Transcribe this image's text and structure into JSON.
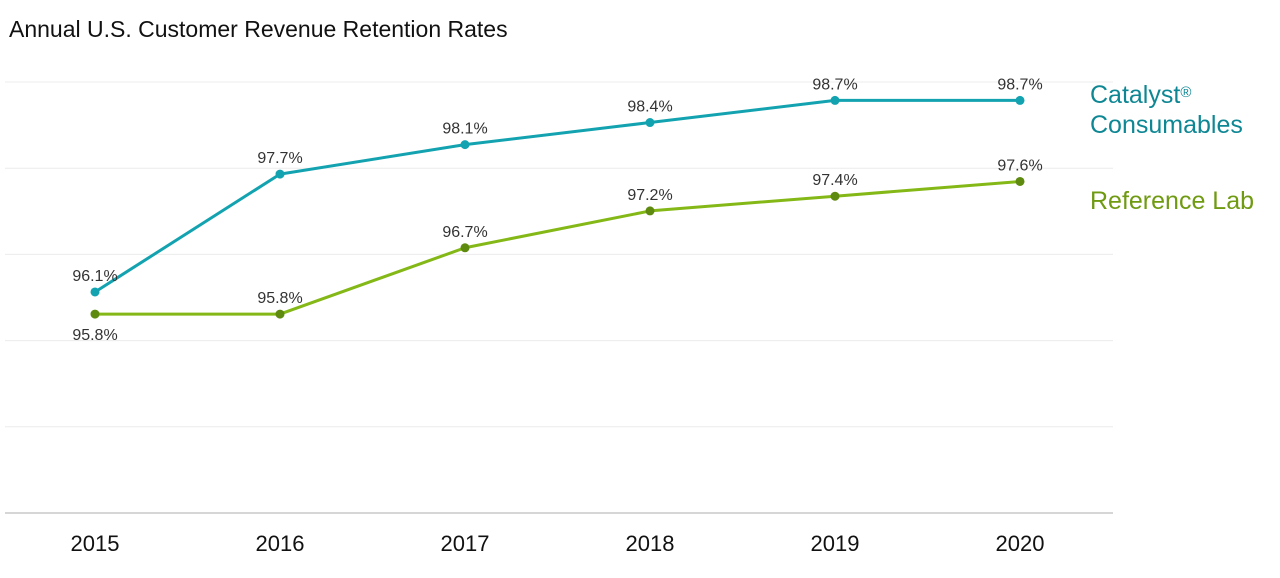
{
  "chart_data": {
    "type": "line",
    "title": "Annual U.S. Customer Revenue Retention Rates",
    "xlabel": "",
    "ylabel": "",
    "x": [
      "2015",
      "2016",
      "2017",
      "2018",
      "2019",
      "2020"
    ],
    "ylim": [
      93.1,
      98.95
    ],
    "grid": true,
    "legend_placement": "right",
    "series": [
      {
        "name": "Catalyst® Consumables",
        "legend_line1": "Catalyst",
        "legend_sup": "®",
        "legend_line2": "Consumables",
        "color": "#13a3b0",
        "marker_color": "#13a3b0",
        "values": [
          96.1,
          97.7,
          98.1,
          98.4,
          98.7,
          98.7
        ],
        "labels": [
          "96.1%",
          "97.7%",
          "98.1%",
          "98.4%",
          "98.7%",
          "98.7%"
        ]
      },
      {
        "name": "Reference Lab",
        "color": "#84b817",
        "marker_color": "#5e8a0f",
        "values": [
          95.8,
          95.8,
          96.7,
          97.2,
          97.4,
          97.6
        ],
        "labels": [
          "95.8%",
          "95.8%",
          "96.7%",
          "97.2%",
          "97.4%",
          "97.6%"
        ]
      }
    ]
  }
}
